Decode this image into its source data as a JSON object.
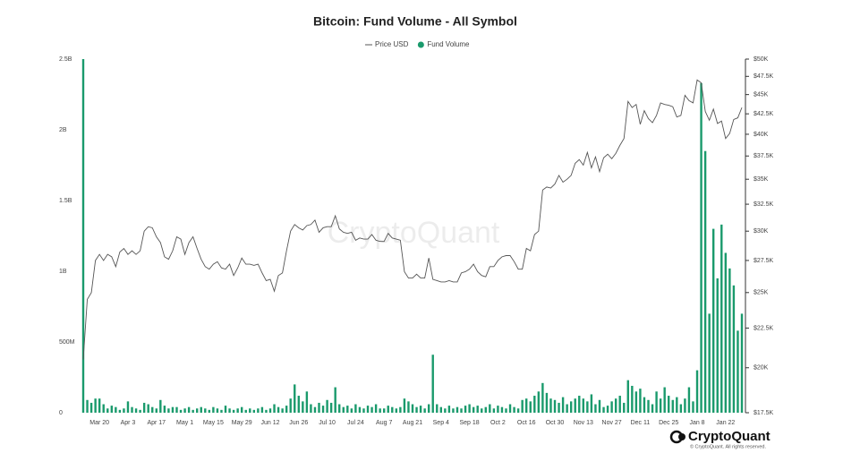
{
  "chart_data": {
    "type": "combo",
    "title": "Bitcoin: Fund Volume - All Symbol",
    "watermark": "CryptoQuant",
    "brand": "CryptoQuant",
    "copyright": "© CryptoQuant. All rights reserved.",
    "categories": [
      null,
      null,
      null,
      null,
      "Mar 20",
      null,
      null,
      null,
      null,
      null,
      null,
      "Apr 3",
      null,
      null,
      null,
      null,
      null,
      null,
      "Apr 17",
      null,
      null,
      null,
      null,
      null,
      null,
      "May 1",
      null,
      null,
      null,
      null,
      null,
      null,
      "May 15",
      null,
      null,
      null,
      null,
      null,
      null,
      "May 29",
      null,
      null,
      null,
      null,
      null,
      null,
      "Jun 12",
      null,
      null,
      null,
      null,
      null,
      null,
      "Jun 26",
      null,
      null,
      null,
      null,
      null,
      null,
      "Jul 10",
      null,
      null,
      null,
      null,
      null,
      null,
      "Jul 24",
      null,
      null,
      null,
      null,
      null,
      null,
      "Aug 7",
      null,
      null,
      null,
      null,
      null,
      null,
      "Aug 21",
      null,
      null,
      null,
      null,
      null,
      null,
      "Sep 4",
      null,
      null,
      null,
      null,
      null,
      null,
      "Sep 18",
      null,
      null,
      null,
      null,
      null,
      null,
      "Oct 2",
      null,
      null,
      null,
      null,
      null,
      null,
      "Oct 16",
      null,
      null,
      null,
      null,
      null,
      null,
      "Oct 30",
      null,
      null,
      null,
      null,
      null,
      null,
      "Nov 13",
      null,
      null,
      null,
      null,
      null,
      null,
      "Nov 27",
      null,
      null,
      null,
      null,
      null,
      null,
      "Dec 11",
      null,
      null,
      null,
      null,
      null,
      null,
      "Dec 25",
      null,
      null,
      null,
      null,
      null,
      null,
      "Jan 8",
      null,
      null,
      null,
      null,
      null,
      null,
      "Jan 22",
      null,
      null,
      null,
      null
    ],
    "series": [
      {
        "name": "Price USD",
        "type": "line",
        "axis": "y2",
        "color": "#555555",
        "values": [
          20500,
          24500,
          25000,
          27500,
          28000,
          27500,
          28000,
          27800,
          27000,
          28200,
          28500,
          28000,
          28300,
          28000,
          28300,
          30000,
          30400,
          30300,
          29500,
          29000,
          27800,
          27600,
          28300,
          29500,
          29300,
          28000,
          29000,
          29500,
          28500,
          27600,
          27000,
          26800,
          27200,
          27400,
          26900,
          26800,
          27200,
          26300,
          26900,
          27700,
          27200,
          27200,
          27100,
          27200,
          26500,
          25900,
          26000,
          25100,
          26300,
          26500,
          28300,
          30000,
          30600,
          30300,
          30100,
          30500,
          30600,
          31000,
          29900,
          30300,
          30400,
          30400,
          31400,
          30200,
          29900,
          29800,
          29900,
          29200,
          29400,
          29300,
          29300,
          29700,
          29200,
          29100,
          29100,
          29800,
          29400,
          29300,
          29200,
          26600,
          26100,
          26100,
          26400,
          26100,
          26100,
          27700,
          26000,
          25900,
          25800,
          25800,
          25900,
          25800,
          25800,
          26500,
          26600,
          26800,
          27200,
          26600,
          26300,
          26200,
          27000,
          27000,
          27500,
          27800,
          27900,
          27900,
          27400,
          26800,
          26800,
          28500,
          28300,
          29700,
          30000,
          33900,
          34200,
          34100,
          34500,
          35400,
          34700,
          35000,
          35400,
          36700,
          37100,
          36500,
          37900,
          36200,
          37400,
          35800,
          37300,
          37700,
          37200,
          37800,
          38700,
          39500,
          44100,
          43300,
          43700,
          41200,
          42900,
          41900,
          41400,
          42300,
          43900,
          43700,
          43600,
          43400,
          42100,
          42300,
          44900,
          44200,
          43900,
          47000,
          46600,
          42800,
          41700,
          43100,
          41300,
          41600,
          39500,
          40100,
          41800,
          42000,
          43300
        ]
      },
      {
        "name": "Fund Volume",
        "type": "bar",
        "color": "#1a9a6c",
        "values": [
          2500000000,
          90000000,
          70000000,
          100000000,
          100000000,
          60000000,
          30000000,
          50000000,
          40000000,
          20000000,
          30000000,
          80000000,
          40000000,
          30000000,
          20000000,
          70000000,
          60000000,
          40000000,
          30000000,
          90000000,
          50000000,
          30000000,
          40000000,
          40000000,
          20000000,
          30000000,
          40000000,
          20000000,
          30000000,
          40000000,
          30000000,
          20000000,
          40000000,
          30000000,
          20000000,
          50000000,
          30000000,
          20000000,
          30000000,
          40000000,
          20000000,
          30000000,
          20000000,
          30000000,
          40000000,
          20000000,
          30000000,
          60000000,
          40000000,
          30000000,
          50000000,
          100000000,
          200000000,
          120000000,
          80000000,
          150000000,
          60000000,
          40000000,
          70000000,
          50000000,
          90000000,
          70000000,
          180000000,
          60000000,
          40000000,
          50000000,
          30000000,
          60000000,
          40000000,
          30000000,
          50000000,
          40000000,
          60000000,
          30000000,
          30000000,
          50000000,
          40000000,
          30000000,
          40000000,
          100000000,
          80000000,
          60000000,
          40000000,
          50000000,
          30000000,
          60000000,
          410000000,
          60000000,
          40000000,
          30000000,
          50000000,
          30000000,
          40000000,
          30000000,
          50000000,
          60000000,
          40000000,
          50000000,
          30000000,
          40000000,
          60000000,
          30000000,
          50000000,
          40000000,
          30000000,
          60000000,
          40000000,
          30000000,
          90000000,
          100000000,
          80000000,
          120000000,
          150000000,
          210000000,
          140000000,
          100000000,
          90000000,
          70000000,
          110000000,
          60000000,
          80000000,
          100000000,
          120000000,
          100000000,
          80000000,
          130000000,
          60000000,
          90000000,
          40000000,
          50000000,
          80000000,
          100000000,
          120000000,
          70000000,
          230000000,
          190000000,
          150000000,
          170000000,
          110000000,
          90000000,
          60000000,
          150000000,
          100000000,
          180000000,
          120000000,
          90000000,
          110000000,
          60000000,
          100000000,
          180000000,
          80000000,
          300000000,
          2330000000,
          1850000000,
          700000000,
          1300000000,
          950000000,
          1330000000,
          1130000000,
          1020000000,
          900000000,
          580000000,
          700000000
        ]
      }
    ],
    "ylim": [
      0,
      2500000000
    ],
    "yticks": [
      0,
      {
        "value": 500000000,
        "label": "500M"
      },
      {
        "value": 1000000000,
        "label": "1B"
      },
      {
        "value": 1500000000,
        "label": "1.5B"
      },
      {
        "value": 2000000000,
        "label": "2B"
      },
      {
        "value": 2500000000,
        "label": "2.5B"
      }
    ],
    "y2lim": [
      17500,
      50000
    ],
    "y2log": true,
    "y2ticks": [
      {
        "value": 17500,
        "label": "$17.5K"
      },
      {
        "value": 20000,
        "label": "$20K"
      },
      {
        "value": 22500,
        "label": "$22.5K"
      },
      {
        "value": 25000,
        "label": "$25K"
      },
      {
        "value": 27500,
        "label": "$27.5K"
      },
      {
        "value": 30000,
        "label": "$30K"
      },
      {
        "value": 32500,
        "label": "$32.5K"
      },
      {
        "value": 35000,
        "label": "$35K"
      },
      {
        "value": 37500,
        "label": "$37.5K"
      },
      {
        "value": 40000,
        "label": "$40K"
      },
      {
        "value": 42500,
        "label": "$42.5K"
      },
      {
        "value": 45000,
        "label": "$45K"
      },
      {
        "value": 47500,
        "label": "$47.5K"
      },
      {
        "value": 50000,
        "label": "$50K"
      }
    ],
    "grid": false,
    "legend": "top"
  }
}
